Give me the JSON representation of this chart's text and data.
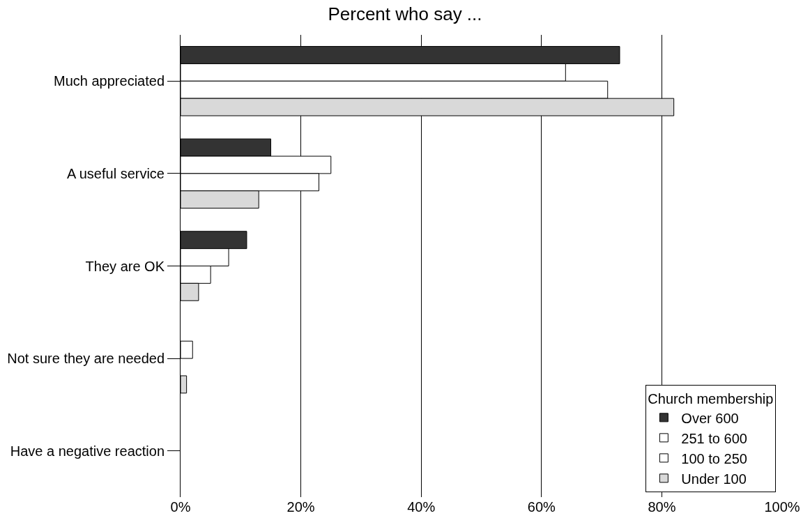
{
  "chart_data": {
    "type": "bar",
    "orientation": "horizontal",
    "title": "Percent who say ...",
    "legend_title": "Church membership",
    "legend": "bottom right",
    "grid": "x",
    "categories": [
      "Much appreciated",
      "A useful service",
      "They are OK",
      "Not sure they are needed",
      "Have a negative reaction"
    ],
    "xlim": [
      0,
      100
    ],
    "xticks": [
      {
        "value": 0,
        "label": "0%"
      },
      {
        "value": 20,
        "label": "20%"
      },
      {
        "value": 40,
        "label": "40%"
      },
      {
        "value": 60,
        "label": "60%"
      },
      {
        "value": 80,
        "label": "80%"
      },
      {
        "value": 100,
        "label": "100%"
      }
    ],
    "series": [
      {
        "name": "Over 600",
        "color": "#333333",
        "values": [
          73,
          15,
          11,
          0,
          0
        ]
      },
      {
        "name": "251 to 600",
        "color": "#ffffff",
        "values": [
          64,
          25,
          8,
          2,
          0
        ]
      },
      {
        "name": "100 to 250",
        "color": "#ffffff",
        "values": [
          71,
          23,
          5,
          0,
          0
        ]
      },
      {
        "name": "Under 100",
        "color": "#d9d9d9",
        "values": [
          82,
          13,
          3,
          1,
          0
        ]
      }
    ]
  }
}
